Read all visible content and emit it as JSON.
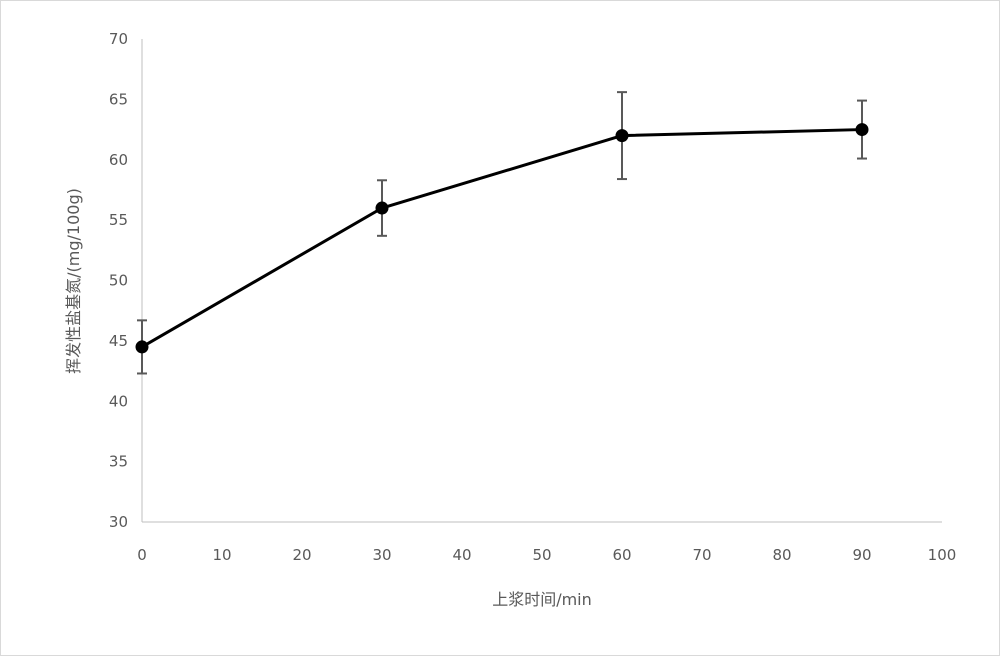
{
  "chart_data": {
    "type": "line",
    "title": "",
    "xlabel": "上浆时间/min",
    "ylabel": "挥发性盐基氮/(mg/100g)",
    "xlim": [
      0,
      100
    ],
    "ylim": [
      30,
      70
    ],
    "x_ticks": [
      0,
      10,
      20,
      30,
      40,
      50,
      60,
      70,
      80,
      90,
      100
    ],
    "y_ticks": [
      30,
      35,
      40,
      45,
      50,
      55,
      60,
      65,
      70
    ],
    "grid": false,
    "legend": "none",
    "series": [
      {
        "x": [
          0,
          30,
          60,
          90
        ],
        "values": [
          44.5,
          56.0,
          62.0,
          62.5
        ],
        "error": [
          2.2,
          2.3,
          3.6,
          2.4
        ],
        "color": "#000000"
      }
    ],
    "error_bar_color": "#595959",
    "axis_color": "#bfbfbf"
  }
}
